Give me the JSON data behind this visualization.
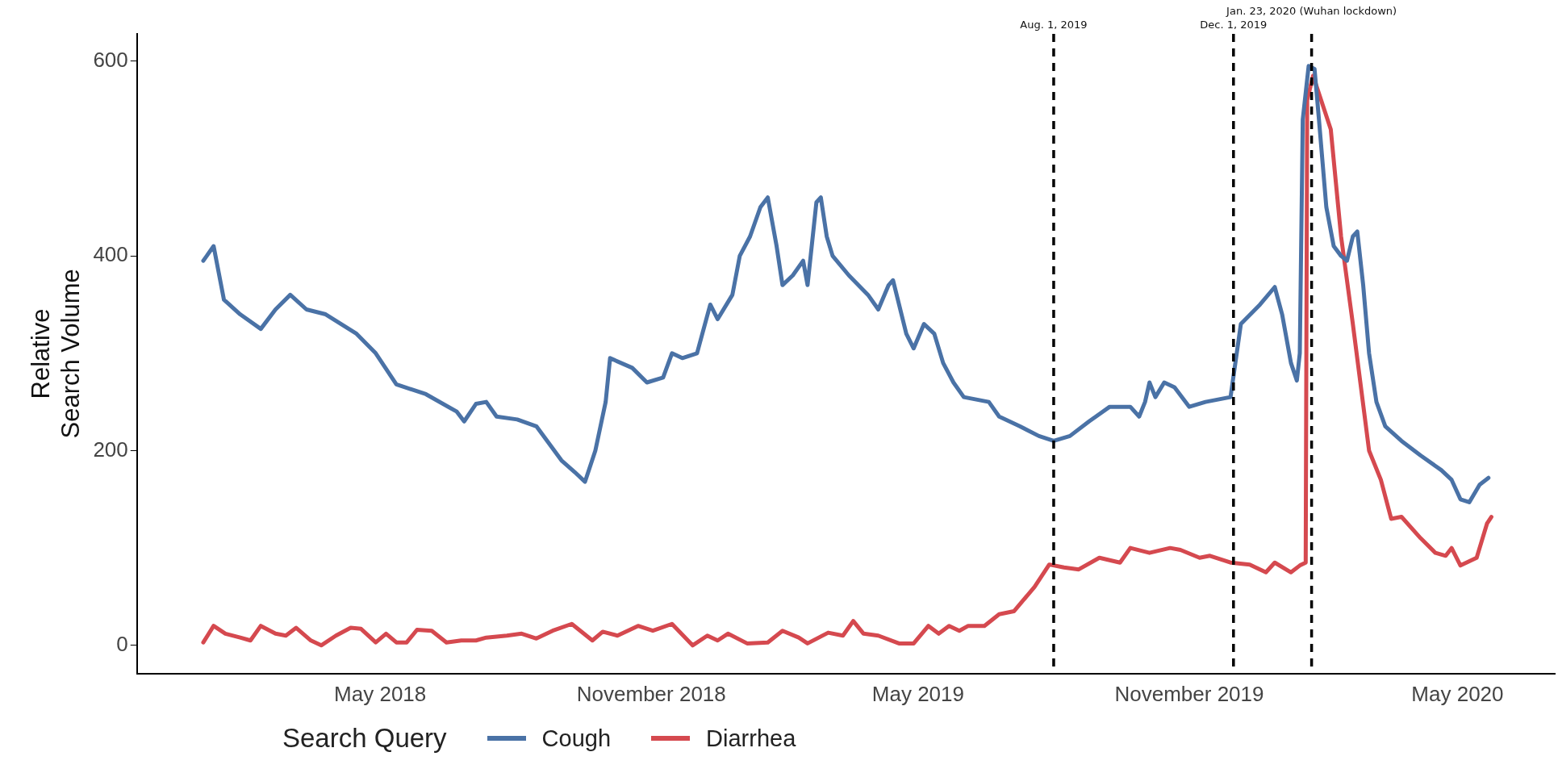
{
  "chart_data": {
    "type": "line",
    "ylabel": "Relative\nSearch Volume",
    "legend_title": "Search Query",
    "legend": "bottom",
    "grid": false,
    "marker": "none",
    "line_style": "solid",
    "xlim": [
      "2017-11-17",
      "2020-07-06"
    ],
    "xticks": [
      {
        "value": "2018-05-01",
        "label": "May 2018"
      },
      {
        "value": "2018-11-01",
        "label": "November 2018"
      },
      {
        "value": "2019-05-01",
        "label": "May 2019"
      },
      {
        "value": "2019-11-01",
        "label": "November 2019"
      },
      {
        "value": "2020-05-01",
        "label": "May 2020"
      }
    ],
    "ylim": [
      -29,
      628
    ],
    "yticks": [
      0,
      200,
      400,
      600
    ],
    "ref_lines": [
      {
        "axis": "x",
        "value": "2019-08-01",
        "label": "Aug. 1, 2019",
        "line_style": "dashed",
        "color": "#000000"
      },
      {
        "axis": "x",
        "value": "2019-12-01",
        "label": "Dec. 1, 2019",
        "line_style": "dashed",
        "color": "#000000"
      },
      {
        "axis": "x",
        "value": "2020-01-23",
        "label": "Jan. 23, 2020 (Wuhan lockdown)",
        "line_style": "dashed",
        "color": "#000000"
      }
    ],
    "series": [
      {
        "name": "Cough",
        "color": "#4a72a6",
        "x": [
          "2018-01-01",
          "2018-01-08",
          "2018-01-15",
          "2018-01-26",
          "2018-02-09",
          "2018-02-19",
          "2018-03-01",
          "2018-03-12",
          "2018-03-25",
          "2018-04-15",
          "2018-04-28",
          "2018-05-12",
          "2018-06-01",
          "2018-06-22",
          "2018-06-27",
          "2018-07-05",
          "2018-07-12",
          "2018-07-19",
          "2018-08-02",
          "2018-08-15",
          "2018-09-01",
          "2018-09-10",
          "2018-09-17",
          "2018-09-24",
          "2018-10-01",
          "2018-10-04",
          "2018-10-19",
          "2018-10-29",
          "2018-11-09",
          "2018-11-15",
          "2018-11-22",
          "2018-12-02",
          "2018-12-11",
          "2018-12-16",
          "2018-12-26",
          "2018-12-31",
          "2019-01-07",
          "2019-01-14",
          "2019-01-19",
          "2019-01-25",
          "2019-01-29",
          "2019-02-05",
          "2019-02-12",
          "2019-02-15",
          "2019-02-21",
          "2019-02-24",
          "2019-02-28",
          "2019-03-04",
          "2019-03-15",
          "2019-03-28",
          "2019-04-04",
          "2019-04-11",
          "2019-04-14",
          "2019-04-23",
          "2019-04-28",
          "2019-05-05",
          "2019-05-12",
          "2019-05-18",
          "2019-05-25",
          "2019-06-01",
          "2019-06-18",
          "2019-06-25",
          "2019-07-02",
          "2019-07-09",
          "2019-07-22",
          "2019-08-01",
          "2019-08-12",
          "2019-08-25",
          "2019-09-08",
          "2019-09-22",
          "2019-09-28",
          "2019-10-02",
          "2019-10-05",
          "2019-10-09",
          "2019-10-15",
          "2019-10-22",
          "2019-11-01",
          "2019-11-12",
          "2019-11-29",
          "2019-12-06",
          "2019-12-19",
          "2019-12-29",
          "2020-01-03",
          "2020-01-09",
          "2020-01-13",
          "2020-01-15",
          "2020-01-17",
          "2020-01-21",
          "2020-01-25",
          "2020-01-28",
          "2020-02-02",
          "2020-02-07",
          "2020-02-12",
          "2020-02-16",
          "2020-02-20",
          "2020-02-23",
          "2020-02-27",
          "2020-03-02",
          "2020-03-07",
          "2020-03-13",
          "2020-03-24",
          "2020-04-06",
          "2020-04-20",
          "2020-04-27",
          "2020-04-30",
          "2020-05-03",
          "2020-05-09",
          "2020-05-16",
          "2020-05-22"
        ],
        "values": [
          395,
          410,
          355,
          340,
          325,
          345,
          360,
          345,
          340,
          320,
          300,
          268,
          258,
          240,
          230,
          248,
          250,
          235,
          232,
          225,
          190,
          178,
          168,
          200,
          250,
          295,
          285,
          270,
          275,
          300,
          295,
          300,
          350,
          335,
          360,
          400,
          420,
          450,
          460,
          410,
          370,
          380,
          395,
          370,
          455,
          460,
          420,
          400,
          380,
          360,
          345,
          370,
          375,
          320,
          305,
          330,
          320,
          290,
          270,
          255,
          250,
          235,
          230,
          225,
          215,
          210,
          215,
          230,
          245,
          245,
          235,
          250,
          270,
          255,
          270,
          265,
          245,
          250,
          255,
          330,
          350,
          368,
          340,
          290,
          272,
          300,
          540,
          595,
          592,
          540,
          450,
          410,
          400,
          395,
          420,
          425,
          370,
          300,
          250,
          225,
          210,
          195,
          180,
          170,
          160,
          150,
          147,
          165,
          172
        ]
      },
      {
        "name": "Diarrhea",
        "color": "#d5494f",
        "x": [
          "2018-01-01",
          "2018-01-08",
          "2018-01-16",
          "2018-01-26",
          "2018-02-02",
          "2018-02-09",
          "2018-02-19",
          "2018-02-26",
          "2018-03-05",
          "2018-03-15",
          "2018-03-22",
          "2018-04-01",
          "2018-04-11",
          "2018-04-18",
          "2018-04-28",
          "2018-05-05",
          "2018-05-12",
          "2018-05-19",
          "2018-05-26",
          "2018-06-05",
          "2018-06-15",
          "2018-06-25",
          "2018-07-05",
          "2018-07-12",
          "2018-07-26",
          "2018-08-05",
          "2018-08-15",
          "2018-08-26",
          "2018-09-08",
          "2018-09-22",
          "2018-09-29",
          "2018-10-09",
          "2018-10-23",
          "2018-11-02",
          "2018-11-15",
          "2018-11-29",
          "2018-12-09",
          "2018-12-16",
          "2018-12-23",
          "2019-01-05",
          "2019-01-19",
          "2019-01-29",
          "2019-02-09",
          "2019-02-15",
          "2019-03-01",
          "2019-03-11",
          "2019-03-18",
          "2019-03-25",
          "2019-04-04",
          "2019-04-18",
          "2019-04-28",
          "2019-05-08",
          "2019-05-15",
          "2019-05-22",
          "2019-05-29",
          "2019-06-04",
          "2019-06-15",
          "2019-06-25",
          "2019-07-05",
          "2019-07-19",
          "2019-07-29",
          "2019-08-08",
          "2019-08-18",
          "2019-09-01",
          "2019-09-15",
          "2019-09-22",
          "2019-10-05",
          "2019-10-19",
          "2019-10-26",
          "2019-11-08",
          "2019-11-15",
          "2019-11-29",
          "2019-12-12",
          "2019-12-23",
          "2019-12-29",
          "2020-01-09",
          "2020-01-15",
          "2020-01-19",
          "2020-01-20",
          "2020-01-24",
          "2020-02-05",
          "2020-02-12",
          "2020-02-20",
          "2020-03-02",
          "2020-03-10",
          "2020-03-17",
          "2020-03-24",
          "2020-04-06",
          "2020-04-16",
          "2020-04-23",
          "2020-04-27",
          "2020-05-03",
          "2020-05-14",
          "2020-05-21",
          "2020-05-24"
        ],
        "values": [
          3,
          20,
          12,
          8,
          5,
          20,
          12,
          10,
          18,
          5,
          0,
          10,
          18,
          17,
          3,
          12,
          3,
          3,
          16,
          15,
          3,
          5,
          5,
          8,
          10,
          12,
          7,
          15,
          22,
          5,
          14,
          10,
          20,
          15,
          22,
          0,
          10,
          5,
          12,
          2,
          3,
          15,
          8,
          2,
          13,
          10,
          25,
          12,
          10,
          2,
          2,
          20,
          12,
          20,
          15,
          20,
          20,
          32,
          35,
          60,
          83,
          80,
          78,
          90,
          85,
          100,
          95,
          100,
          98,
          90,
          92,
          85,
          83,
          75,
          85,
          75,
          82,
          85,
          560,
          585,
          530,
          420,
          330,
          200,
          170,
          130,
          132,
          110,
          95,
          92,
          100,
          82,
          90,
          125,
          132
        ]
      }
    ]
  }
}
